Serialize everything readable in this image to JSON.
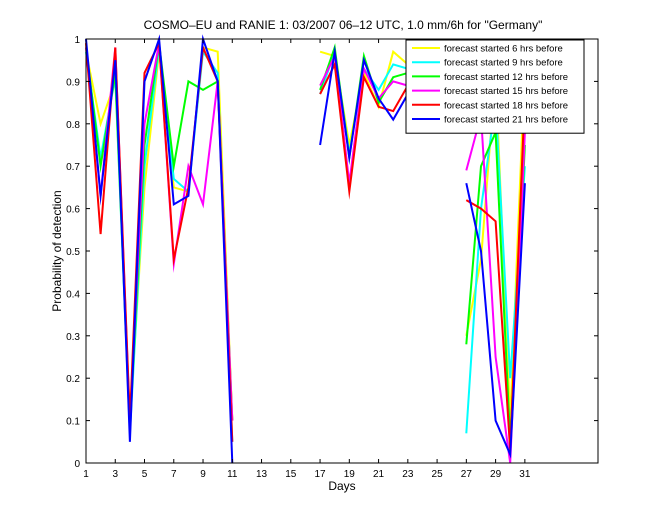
{
  "chart_data": {
    "type": "line",
    "title": "COSMO–EU and RANIE 1: 03/2007 06–12 UTC, 1.0 mm/6h for \"Germany\"",
    "xlabel": "Days",
    "ylabel": "Probability of detection",
    "xlim": [
      1,
      36
    ],
    "ylim": [
      0,
      1
    ],
    "x_ticks": [
      1,
      3,
      5,
      7,
      9,
      11,
      13,
      15,
      17,
      19,
      21,
      23,
      25,
      27,
      29,
      31
    ],
    "y_ticks": [
      0,
      0.1,
      0.2,
      0.3,
      0.4,
      0.5,
      0.6,
      0.7,
      0.8,
      0.9,
      1
    ],
    "y_tick_labels": [
      "0",
      "0.1",
      "0.2",
      "0.3",
      "0.4",
      "0.5",
      "0.6",
      "0.7",
      "0.8",
      "0.9",
      "1"
    ],
    "grid": false,
    "legend_position": "top-right",
    "series": [
      {
        "name": "forecast started 6 hrs before",
        "color": "#ffff00",
        "segments": [
          {
            "x": [
              1,
              2,
              3,
              4,
              5,
              6,
              7,
              8,
              9,
              10,
              11
            ],
            "y": [
              0.97,
              0.8,
              0.9,
              0.1,
              0.65,
              0.97,
              0.65,
              0.64,
              0.98,
              0.97,
              0.1
            ]
          },
          {
            "x": [
              17,
              18,
              19,
              20,
              21,
              22,
              23,
              24
            ],
            "y": [
              0.97,
              0.96,
              0.75,
              0.92,
              0.84,
              0.97,
              0.94,
              0.96
            ]
          },
          {
            "x": [
              27,
              28,
              29,
              30,
              31
            ],
            "y": [
              0.3,
              0.48,
              0.92,
              0.1,
              0.94
            ]
          }
        ]
      },
      {
        "name": "forecast started 9 hrs before",
        "color": "#00ffff",
        "segments": [
          {
            "x": [
              1,
              2,
              3,
              4,
              5,
              6,
              7,
              8,
              9,
              10,
              11
            ],
            "y": [
              0.97,
              0.72,
              0.91,
              0.07,
              0.7,
              0.98,
              0.67,
              0.64,
              0.97,
              0.92,
              0.05
            ]
          },
          {
            "x": [
              17,
              18,
              19,
              20,
              21,
              22,
              23,
              24
            ],
            "y": [
              0.87,
              0.97,
              0.73,
              0.93,
              0.88,
              0.94,
              0.93,
              0.98
            ]
          },
          {
            "x": [
              27,
              28,
              29,
              30,
              31
            ],
            "y": [
              0.07,
              0.6,
              0.85,
              0.2,
              0.7
            ]
          }
        ]
      },
      {
        "name": "forecast started 12 hrs before",
        "color": "#00ff00",
        "segments": [
          {
            "x": [
              1,
              2,
              3,
              4,
              5,
              6,
              7,
              8,
              9,
              10,
              11
            ],
            "y": [
              0.98,
              0.7,
              0.92,
              0.08,
              0.75,
              0.99,
              0.7,
              0.9,
              0.88,
              0.9,
              0.1
            ]
          },
          {
            "x": [
              17,
              18,
              19,
              20,
              21,
              22,
              23,
              24
            ],
            "y": [
              0.88,
              0.98,
              0.72,
              0.96,
              0.85,
              0.91,
              0.92,
              0.96
            ]
          },
          {
            "x": [
              27,
              28,
              29,
              30,
              31
            ],
            "y": [
              0.28,
              0.7,
              0.78,
              0.05,
              0.75
            ]
          }
        ]
      },
      {
        "name": "forecast started 15 hrs before",
        "color": "#ff00ff",
        "segments": [
          {
            "x": [
              1,
              2,
              3,
              4,
              5,
              6,
              7,
              8,
              9,
              10,
              11
            ],
            "y": [
              0.98,
              0.63,
              0.98,
              0.09,
              0.8,
              0.99,
              0.47,
              0.7,
              0.61,
              0.9,
              0.1
            ]
          },
          {
            "x": [
              17,
              18,
              19,
              20,
              21,
              22,
              23,
              24
            ],
            "y": [
              0.89,
              0.96,
              0.66,
              0.93,
              0.86,
              0.9,
              0.89,
              0.92
            ]
          },
          {
            "x": [
              27,
              28,
              29,
              30,
              31
            ],
            "y": [
              0.69,
              0.82,
              0.25,
              0.0,
              0.78
            ]
          }
        ]
      },
      {
        "name": "forecast started 18 hrs before",
        "color": "#ff0000",
        "segments": [
          {
            "x": [
              1,
              2,
              3,
              4,
              5,
              6,
              7,
              8,
              9,
              10,
              11
            ],
            "y": [
              0.99,
              0.54,
              0.98,
              0.1,
              0.92,
              0.99,
              0.48,
              0.65,
              0.98,
              0.9,
              0.05
            ]
          },
          {
            "x": [
              17,
              18,
              19,
              20,
              21,
              22,
              23,
              24
            ],
            "y": [
              0.87,
              0.94,
              0.64,
              0.91,
              0.84,
              0.83,
              0.89,
              0.87
            ]
          },
          {
            "x": [
              27,
              28,
              29,
              30,
              31
            ],
            "y": [
              0.62,
              0.6,
              0.57,
              0.03,
              0.87
            ]
          }
        ]
      },
      {
        "name": "forecast started 21 hrs before",
        "color": "#0000ff",
        "segments": [
          {
            "x": [
              1,
              2,
              3,
              4,
              5,
              6,
              7,
              8,
              9,
              10,
              11
            ],
            "y": [
              1.0,
              0.63,
              0.95,
              0.05,
              0.9,
              1.0,
              0.61,
              0.63,
              1.0,
              0.9,
              0.0
            ]
          },
          {
            "x": [
              17,
              18,
              19,
              20,
              21,
              22,
              23,
              24
            ],
            "y": [
              0.75,
              0.97,
              0.72,
              0.95,
              0.86,
              0.81,
              0.87,
              0.86
            ]
          },
          {
            "x": [
              27,
              28,
              29,
              30,
              31
            ],
            "y": [
              0.66,
              0.5,
              0.1,
              0.02,
              0.66
            ]
          }
        ]
      }
    ]
  }
}
